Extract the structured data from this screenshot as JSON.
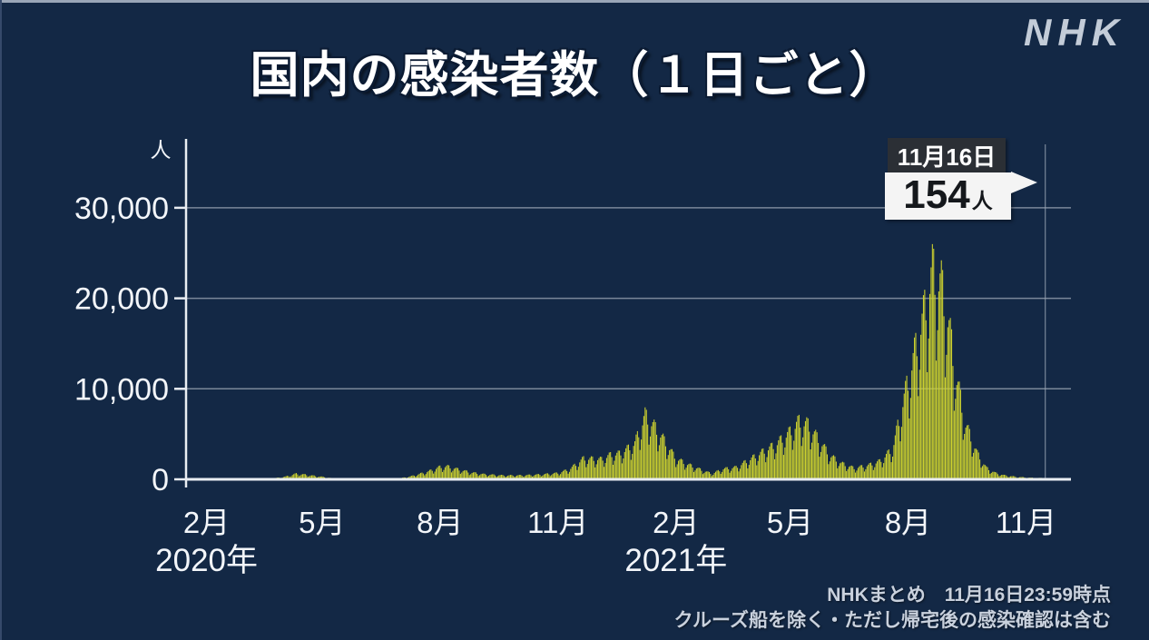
{
  "branding": {
    "logo": "NHK"
  },
  "header": {
    "title": "国内の感染者数（１日ごと）"
  },
  "annotation": {
    "date_label": "11月16日",
    "value": "154",
    "unit": "人"
  },
  "source": {
    "line1": "NHKまとめ　11月16日23:59時点",
    "line2": "クルーズ船を除く・ただし帰宅後の感染確認は含む"
  },
  "chart_data": {
    "type": "bar",
    "title": "国内の感染者数（１日ごと）",
    "ylabel_unit": "人",
    "start_date": "2020-01-16",
    "end_date": "2021-11-16",
    "ylim": [
      0,
      33000
    ],
    "grid": true,
    "yticks": [
      {
        "value": 0,
        "label": "0"
      },
      {
        "value": 10000,
        "label": "10,000"
      },
      {
        "value": 20000,
        "label": "20,000"
      },
      {
        "value": 30000,
        "label": "30,000"
      }
    ],
    "xticks": [
      {
        "date": "2020-02-01",
        "label": "2月"
      },
      {
        "date": "2020-05-01",
        "label": "5月"
      },
      {
        "date": "2020-08-01",
        "label": "8月"
      },
      {
        "date": "2020-11-01",
        "label": "11月"
      },
      {
        "date": "2021-02-01",
        "label": "2月"
      },
      {
        "date": "2021-05-01",
        "label": "5月"
      },
      {
        "date": "2021-08-01",
        "label": "8月"
      },
      {
        "date": "2021-11-01",
        "label": "11月"
      }
    ],
    "year_labels": [
      {
        "date": "2020-02-01",
        "label": "2020年"
      },
      {
        "date": "2021-02-01",
        "label": "2021年"
      }
    ],
    "marker": {
      "date": "2021-11-16",
      "value": 154,
      "date_label": "11月16日",
      "value_label": "154人"
    },
    "weekly_pattern": [
      0.8,
      0.52,
      0.66,
      0.84,
      0.93,
      1.0,
      0.99
    ],
    "anchors": [
      [
        "2020-01-16",
        1
      ],
      [
        "2020-02-05",
        4
      ],
      [
        "2020-02-20",
        15
      ],
      [
        "2020-03-05",
        35
      ],
      [
        "2020-03-20",
        65
      ],
      [
        "2020-03-28",
        200
      ],
      [
        "2020-04-03",
        350
      ],
      [
        "2020-04-11",
        700
      ],
      [
        "2020-04-18",
        580
      ],
      [
        "2020-04-25",
        430
      ],
      [
        "2020-05-02",
        300
      ],
      [
        "2020-05-10",
        110
      ],
      [
        "2020-05-20",
        40
      ],
      [
        "2020-06-01",
        35
      ],
      [
        "2020-06-15",
        70
      ],
      [
        "2020-07-01",
        130
      ],
      [
        "2020-07-10",
        400
      ],
      [
        "2020-07-23",
        980
      ],
      [
        "2020-08-01",
        1540
      ],
      [
        "2020-08-07",
        1600
      ],
      [
        "2020-08-15",
        1250
      ],
      [
        "2020-08-25",
        860
      ],
      [
        "2020-09-05",
        620
      ],
      [
        "2020-09-20",
        480
      ],
      [
        "2020-10-05",
        500
      ],
      [
        "2020-10-20",
        620
      ],
      [
        "2020-11-01",
        780
      ],
      [
        "2020-11-10",
        1250
      ],
      [
        "2020-11-21",
        2590
      ],
      [
        "2020-12-05",
        2500
      ],
      [
        "2020-12-12",
        3040
      ],
      [
        "2020-12-19",
        3200
      ],
      [
        "2020-12-26",
        3880
      ],
      [
        "2020-12-31",
        4520
      ],
      [
        "2021-01-08",
        7950
      ],
      [
        "2021-01-15",
        6600
      ],
      [
        "2021-01-22",
        5050
      ],
      [
        "2021-02-01",
        2600
      ],
      [
        "2021-02-10",
        1880
      ],
      [
        "2021-02-20",
        1230
      ],
      [
        "2021-03-01",
        700
      ],
      [
        "2021-03-10",
        1300
      ],
      [
        "2021-03-20",
        1500
      ],
      [
        "2021-04-01",
        2600
      ],
      [
        "2021-04-10",
        3450
      ],
      [
        "2021-04-20",
        4350
      ],
      [
        "2021-05-01",
        5900
      ],
      [
        "2021-05-08",
        7200
      ],
      [
        "2021-05-15",
        6800
      ],
      [
        "2021-05-22",
        5250
      ],
      [
        "2021-06-01",
        3000
      ],
      [
        "2021-06-10",
        2000
      ],
      [
        "2021-06-20",
        1400
      ],
      [
        "2021-07-01",
        1750
      ],
      [
        "2021-07-10",
        2250
      ],
      [
        "2021-07-20",
        3800
      ],
      [
        "2021-07-28",
        9500
      ],
      [
        "2021-08-05",
        15000
      ],
      [
        "2021-08-13",
        20350
      ],
      [
        "2021-08-20",
        25990
      ],
      [
        "2021-08-27",
        24200
      ],
      [
        "2021-09-01",
        20000
      ],
      [
        "2021-09-08",
        12400
      ],
      [
        "2021-09-15",
        6800
      ],
      [
        "2021-09-24",
        3250
      ],
      [
        "2021-10-01",
        1450
      ],
      [
        "2021-10-08",
        800
      ],
      [
        "2021-10-15",
        500
      ],
      [
        "2021-10-25",
        300
      ],
      [
        "2021-11-05",
        190
      ],
      [
        "2021-11-16",
        154
      ]
    ],
    "colors": {
      "bar": "#d0d42e",
      "background": "#132845",
      "grid": "#8d98a8",
      "axis": "#e9edf2",
      "marker_line": "#9aa5b5",
      "tick_text": "#f3f6fa"
    },
    "legend": null
  }
}
